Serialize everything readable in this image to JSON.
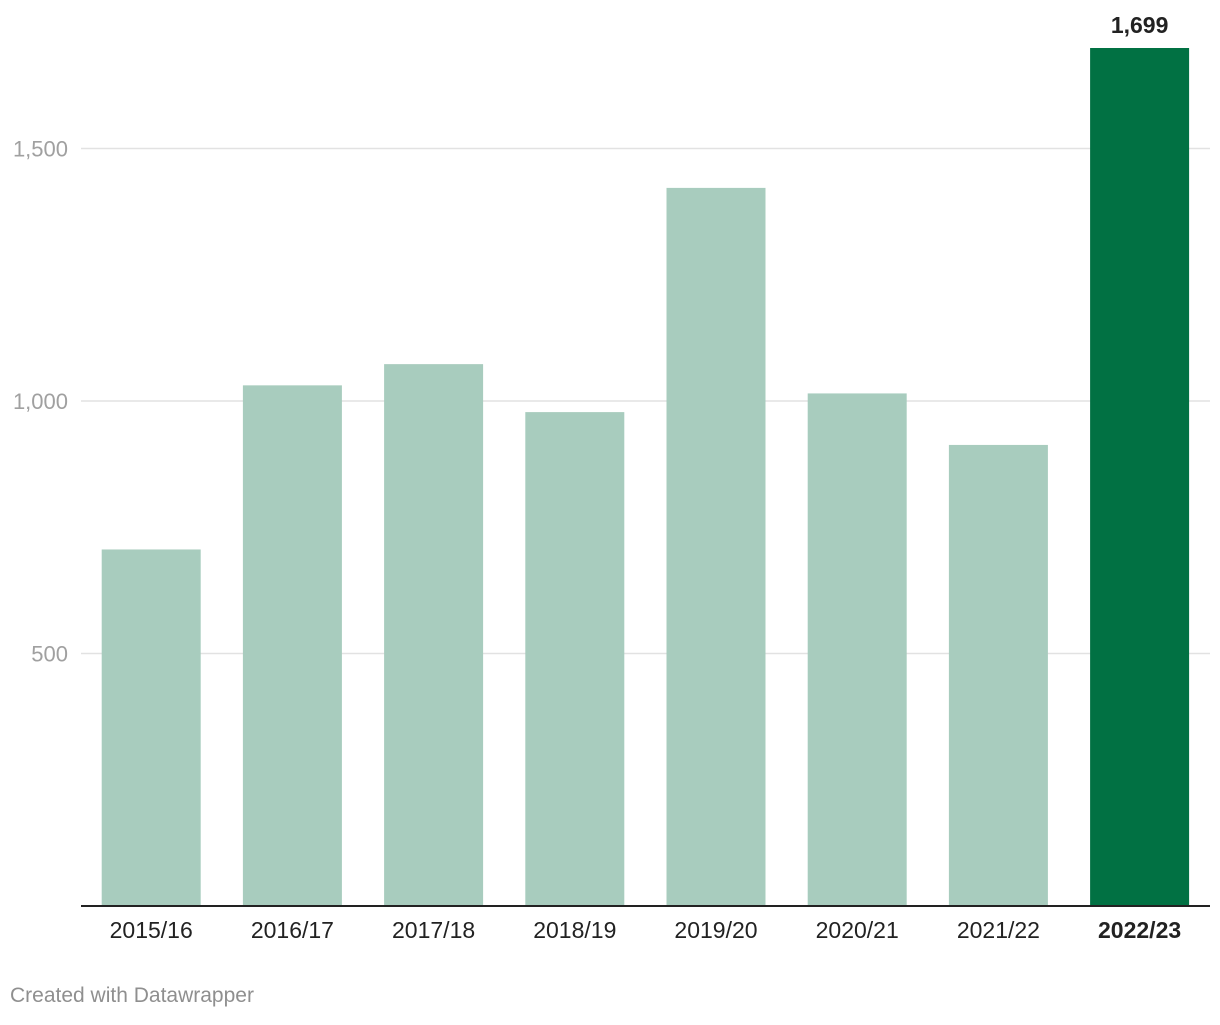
{
  "chart_data": {
    "type": "bar",
    "title": "",
    "xlabel": "",
    "ylabel": "",
    "categories": [
      "2015/16",
      "2016/17",
      "2017/18",
      "2018/19",
      "2019/20",
      "2020/21",
      "2021/22",
      "2022/23"
    ],
    "values": [
      706,
      1031,
      1073,
      978,
      1422,
      1015,
      913,
      1699
    ],
    "highlight_index": 7,
    "highlight_label": "1,699",
    "ylim": [
      0,
      1699
    ],
    "yticks": [
      500,
      1000,
      1500
    ],
    "ytick_labels": [
      "500",
      "1,000",
      "1,500"
    ],
    "grid": true,
    "legend": "none",
    "colors": {
      "bar": "#a8ccbe",
      "highlight": "#017143",
      "grid": "#e2e2e2",
      "axis": "#222222",
      "tick_label": "#a0a0a0",
      "category_label": "#222222",
      "value_label": "#222222"
    }
  },
  "footer": {
    "credit": "Created with Datawrapper"
  }
}
